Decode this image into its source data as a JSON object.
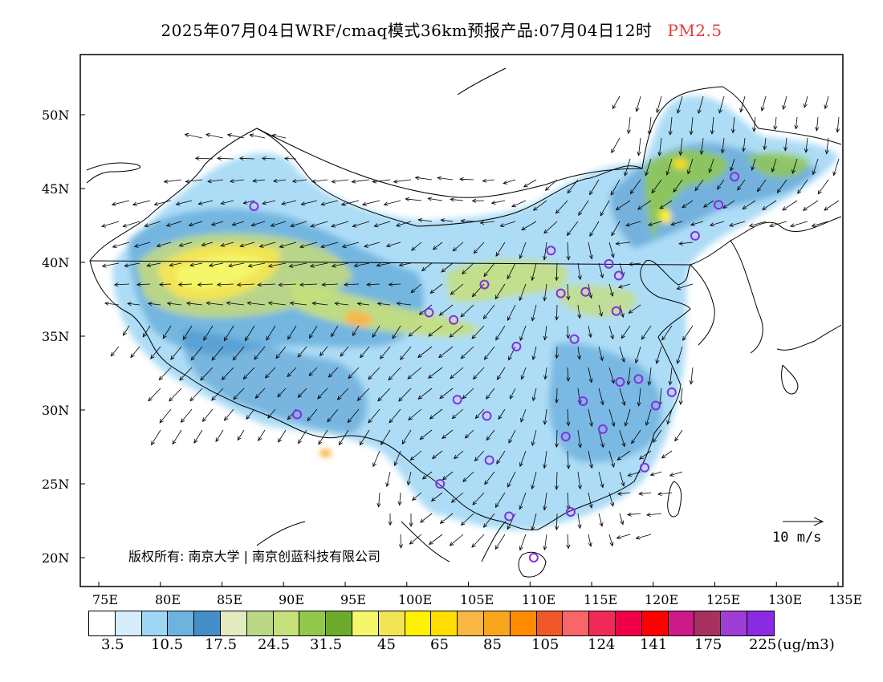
{
  "title": {
    "main": "2025年07月04日WRF/cmaq模式36km预报产品:07月04日12时",
    "pollutant": "PM2.5"
  },
  "axes": {
    "lat_labels": [
      "50N",
      "45N",
      "40N",
      "35N",
      "30N",
      "25N",
      "20N"
    ],
    "lon_labels": [
      "75E",
      "80E",
      "85E",
      "90E",
      "95E",
      "100E",
      "105E",
      "110E",
      "115E",
      "120E",
      "125E",
      "130E",
      "135E"
    ]
  },
  "legend": {
    "colors": [
      "#ffffff",
      "#d6eefb",
      "#9fd6f4",
      "#6eb2de",
      "#448fc9",
      "#e2ebc0",
      "#bcd785",
      "#c5e07a",
      "#92c94a",
      "#6cab2c",
      "#f4f76a",
      "#f2e454",
      "#fff200",
      "#ffde00",
      "#f9b642",
      "#f8a51c",
      "#ff8c00",
      "#f0582a",
      "#f8666a",
      "#f02a56",
      "#f00048",
      "#ff0000",
      "#ce1a88",
      "#a8305e",
      "#a03ed3",
      "#8a2be2"
    ],
    "tick_labels": [
      "3.5",
      "10.5",
      "17.5",
      "24.5",
      "31.5",
      "45",
      "65",
      "85",
      "105",
      "124",
      "141",
      "175",
      "225"
    ],
    "unit": "(ug/m3)"
  },
  "wind_reference": {
    "label": "10 m/s"
  },
  "copyright": "版权所有: 南京大学 | 南京创蓝科技有限公司",
  "chart_data": {
    "type": "map",
    "variable": "PM2.5",
    "lon_range": [
      73,
      135
    ],
    "lat_range": [
      18,
      54
    ],
    "stations": [
      {
        "lon": 87.6,
        "lat": 43.8
      },
      {
        "lon": 91.1,
        "lat": 29.7
      },
      {
        "lon": 101.8,
        "lat": 36.6
      },
      {
        "lon": 103.8,
        "lat": 36.1
      },
      {
        "lon": 106.3,
        "lat": 38.5
      },
      {
        "lon": 111.7,
        "lat": 40.8
      },
      {
        "lon": 112.5,
        "lat": 37.9
      },
      {
        "lon": 114.5,
        "lat": 38.0
      },
      {
        "lon": 116.4,
        "lat": 39.9
      },
      {
        "lon": 117.2,
        "lat": 39.1
      },
      {
        "lon": 117.0,
        "lat": 36.7
      },
      {
        "lon": 113.6,
        "lat": 34.8
      },
      {
        "lon": 108.9,
        "lat": 34.3
      },
      {
        "lon": 104.1,
        "lat": 30.7
      },
      {
        "lon": 106.5,
        "lat": 29.6
      },
      {
        "lon": 106.7,
        "lat": 26.6
      },
      {
        "lon": 102.7,
        "lat": 25.0
      },
      {
        "lon": 108.3,
        "lat": 22.8
      },
      {
        "lon": 113.3,
        "lat": 23.1
      },
      {
        "lon": 110.3,
        "lat": 20.0
      },
      {
        "lon": 112.9,
        "lat": 28.2
      },
      {
        "lon": 114.3,
        "lat": 30.6
      },
      {
        "lon": 115.9,
        "lat": 28.7
      },
      {
        "lon": 117.3,
        "lat": 31.9
      },
      {
        "lon": 118.8,
        "lat": 32.1
      },
      {
        "lon": 120.2,
        "lat": 30.3
      },
      {
        "lon": 121.5,
        "lat": 31.2
      },
      {
        "lon": 119.3,
        "lat": 26.1
      },
      {
        "lon": 123.4,
        "lat": 41.8
      },
      {
        "lon": 125.3,
        "lat": 43.9
      },
      {
        "lon": 126.6,
        "lat": 45.8
      }
    ],
    "hotspots": [
      {
        "lon": 83,
        "lat": 38.5,
        "level": "45"
      },
      {
        "lon": 95,
        "lat": 36.5,
        "level": "85"
      },
      {
        "lon": 92.5,
        "lat": 27.1,
        "level": "65"
      },
      {
        "lon": 120.5,
        "lat": 42.8,
        "level": "45"
      },
      {
        "lon": 124,
        "lat": 46.5,
        "level": "31.5"
      }
    ]
  }
}
